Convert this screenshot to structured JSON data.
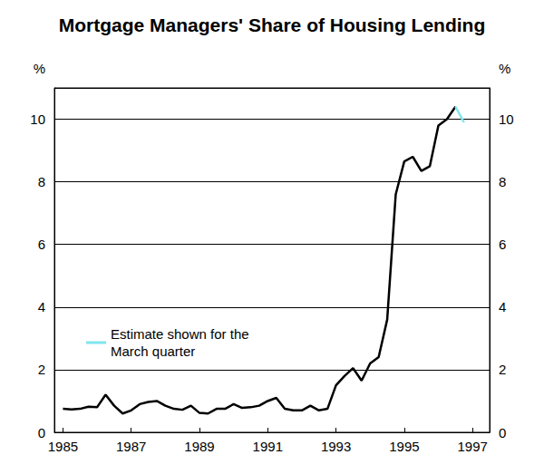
{
  "chart_data": {
    "type": "line",
    "title": "Mortgage Managers' Share of Housing Lending",
    "y_label": "%",
    "x": [
      1985,
      1985.25,
      1985.5,
      1985.75,
      1986,
      1986.25,
      1986.5,
      1986.75,
      1987,
      1987.25,
      1987.5,
      1987.75,
      1988,
      1988.25,
      1988.5,
      1988.75,
      1989,
      1989.25,
      1989.5,
      1989.75,
      1990,
      1990.25,
      1990.5,
      1990.75,
      1991,
      1991.25,
      1991.5,
      1991.75,
      1992,
      1992.25,
      1992.5,
      1992.75,
      1993,
      1993.25,
      1993.5,
      1993.75,
      1994,
      1994.25,
      1994.5,
      1994.75,
      1995,
      1995.25,
      1995.5,
      1995.75,
      1996,
      1996.25,
      1996.5,
      1996.75
    ],
    "series": [
      {
        "color": "#000000",
        "values": [
          0.75,
          0.73,
          0.75,
          0.82,
          0.8,
          1.2,
          0.85,
          0.6,
          0.7,
          0.9,
          0.97,
          1.0,
          0.85,
          0.75,
          0.72,
          0.85,
          0.62,
          0.6,
          0.75,
          0.75,
          0.9,
          0.78,
          0.8,
          0.85,
          1.0,
          1.1,
          0.75,
          0.7,
          0.7,
          0.85,
          0.7,
          0.75,
          1.5,
          1.8,
          2.05,
          1.65,
          2.2,
          2.4,
          3.6,
          7.6,
          8.65,
          8.8,
          8.35,
          8.5,
          9.8,
          10.0,
          10.4,
          null
        ]
      },
      {
        "name": "Estimate shown for the\nMarch quarter",
        "color": "#80e5ee",
        "values": [
          null,
          null,
          null,
          null,
          null,
          null,
          null,
          null,
          null,
          null,
          null,
          null,
          null,
          null,
          null,
          null,
          null,
          null,
          null,
          null,
          null,
          null,
          null,
          null,
          null,
          null,
          null,
          null,
          null,
          null,
          null,
          null,
          null,
          null,
          null,
          null,
          null,
          null,
          null,
          null,
          null,
          null,
          null,
          null,
          null,
          null,
          10.4,
          9.9
        ]
      }
    ],
    "xlim": [
      1984.75,
      1997.5
    ],
    "xticks": [
      1985,
      1987,
      1989,
      1991,
      1993,
      1995,
      1997
    ],
    "ylim": [
      0,
      11
    ],
    "yticks": [
      0,
      2,
      4,
      6,
      8,
      10
    ],
    "y2lim": [
      0,
      11
    ],
    "y2ticks": [
      0,
      2,
      4,
      6,
      8,
      10
    ],
    "grid": true,
    "legend": "lower left"
  }
}
